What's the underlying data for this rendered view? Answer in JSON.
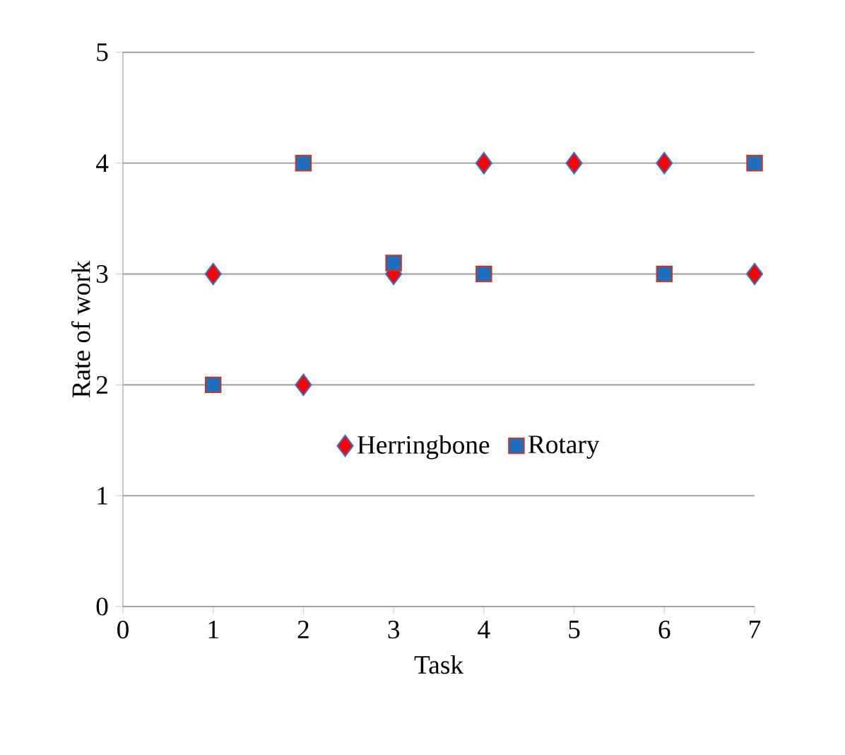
{
  "chart_data": {
    "type": "scatter",
    "xlabel": "Task",
    "ylabel": "Rate of work",
    "x": [
      1,
      2,
      3,
      4,
      5,
      6,
      7
    ],
    "series": [
      {
        "name": "Herringbone",
        "color": "#ff0000",
        "marker": "diamond",
        "values": [
          3,
          2,
          3,
          4,
          4,
          4,
          3
        ]
      },
      {
        "name": "Rotary",
        "color": "#1f6fbf",
        "marker": "square",
        "values": [
          2,
          4,
          3.1,
          3,
          null,
          3,
          4
        ]
      }
    ],
    "xlim": [
      0,
      7
    ],
    "xticks": [
      0,
      1,
      2,
      3,
      4,
      5,
      6,
      7
    ],
    "ylim": [
      0,
      5
    ],
    "yticks": [
      0,
      1,
      2,
      3,
      4,
      5
    ],
    "grid": "y",
    "legend": "bottom"
  }
}
